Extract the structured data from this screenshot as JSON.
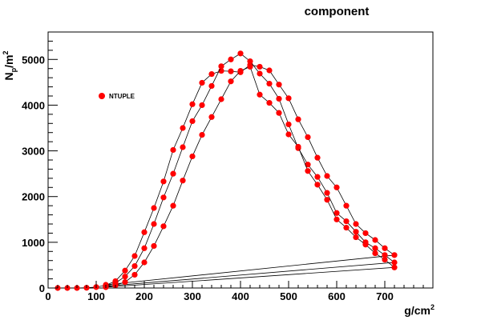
{
  "chart_data": {
    "type": "scatter",
    "title": "component",
    "xlabel": "g/cm",
    "xlabel_sup": "2",
    "ylabel": "N",
    "ylabel_sub": "p",
    "ylabel_tail": "/m",
    "ylabel_sup": "2",
    "xlim": [
      0,
      800
    ],
    "ylim": [
      0,
      5600
    ],
    "x_ticks": [
      0,
      100,
      200,
      300,
      400,
      500,
      600,
      700
    ],
    "y_ticks": [
      0,
      1000,
      2000,
      3000,
      4000,
      5000
    ],
    "grid": false,
    "legend": {
      "placement": "top-left",
      "entries": [
        "NTUPLE"
      ]
    },
    "marker_color": "#ff0000",
    "line_color": "#000000",
    "series": [
      {
        "x": [
          20,
          40,
          60,
          80,
          100,
          120,
          140,
          160,
          180,
          200,
          220,
          240,
          260,
          280,
          300,
          320,
          340,
          360,
          380,
          400,
          420,
          440,
          460,
          480,
          500,
          520,
          540,
          560,
          580,
          600,
          620,
          640,
          660,
          680,
          700,
          720,
          120
        ],
        "y": [
          0,
          0,
          0,
          5,
          20,
          60,
          150,
          380,
          700,
          1220,
          1750,
          2330,
          3020,
          3500,
          4020,
          4490,
          4680,
          4750,
          4740,
          4720,
          4880,
          4840,
          4760,
          4450,
          4150,
          3690,
          3300,
          2850,
          2450,
          2200,
          1800,
          1400,
          1200,
          1050,
          870,
          720,
          70
        ]
      },
      {
        "x": [
          120,
          140,
          160,
          180,
          200,
          220,
          240,
          260,
          280,
          300,
          320,
          340,
          360,
          380,
          400,
          420,
          440,
          460,
          480,
          500,
          520,
          540,
          560,
          580,
          600,
          620,
          640,
          660,
          680,
          700,
          720,
          120
        ],
        "y": [
          40,
          110,
          250,
          480,
          870,
          1400,
          1980,
          2500,
          3080,
          3650,
          4000,
          4420,
          4850,
          5000,
          5130,
          4960,
          4690,
          4470,
          4140,
          3580,
          3060,
          2700,
          2430,
          2080,
          1640,
          1460,
          1230,
          1000,
          870,
          720,
          560,
          40
        ]
      },
      {
        "x": [
          120,
          140,
          160,
          180,
          200,
          220,
          240,
          260,
          280,
          300,
          320,
          340,
          360,
          380,
          400,
          420,
          440,
          460,
          480,
          500,
          520,
          540,
          560,
          580,
          600,
          620,
          640,
          660,
          680,
          700,
          720,
          120
        ],
        "y": [
          20,
          60,
          130,
          290,
          560,
          920,
          1350,
          1800,
          2350,
          2880,
          3350,
          3740,
          4130,
          4520,
          4750,
          4840,
          4230,
          4050,
          3830,
          3360,
          3090,
          2560,
          2260,
          1930,
          1500,
          1320,
          1110,
          950,
          760,
          620,
          450,
          20
        ]
      }
    ]
  }
}
